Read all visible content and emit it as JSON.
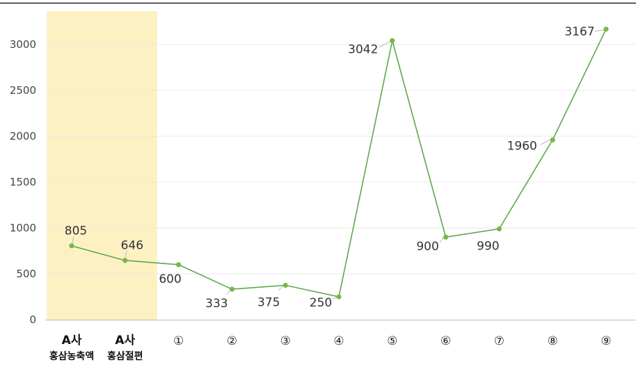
{
  "chart_data": {
    "type": "line",
    "categories": [
      [
        "A사",
        "홍삼농축액"
      ],
      [
        "A사",
        "홍삼절편"
      ],
      [
        "①"
      ],
      [
        "②"
      ],
      [
        "③"
      ],
      [
        "④"
      ],
      [
        "⑤"
      ],
      [
        "⑥"
      ],
      [
        "⑦"
      ],
      [
        "⑧"
      ],
      [
        "⑨"
      ]
    ],
    "values": [
      805,
      646,
      600,
      333,
      375,
      250,
      3042,
      900,
      990,
      1960,
      3167
    ],
    "title": "",
    "xlabel": "",
    "ylabel": "",
    "ylim": [
      0,
      3400
    ],
    "yticks": [
      0,
      500,
      1000,
      1500,
      2000,
      2500,
      3000
    ],
    "highlight_categories": [
      0,
      1
    ],
    "grid": true,
    "colors": {
      "line": "#5aaa4a",
      "marker": "#7ab648",
      "highlight": "#fdf1c4",
      "grid": "#e8e8e8",
      "topRule": "#222222",
      "axis": "#bfbfbf"
    }
  }
}
